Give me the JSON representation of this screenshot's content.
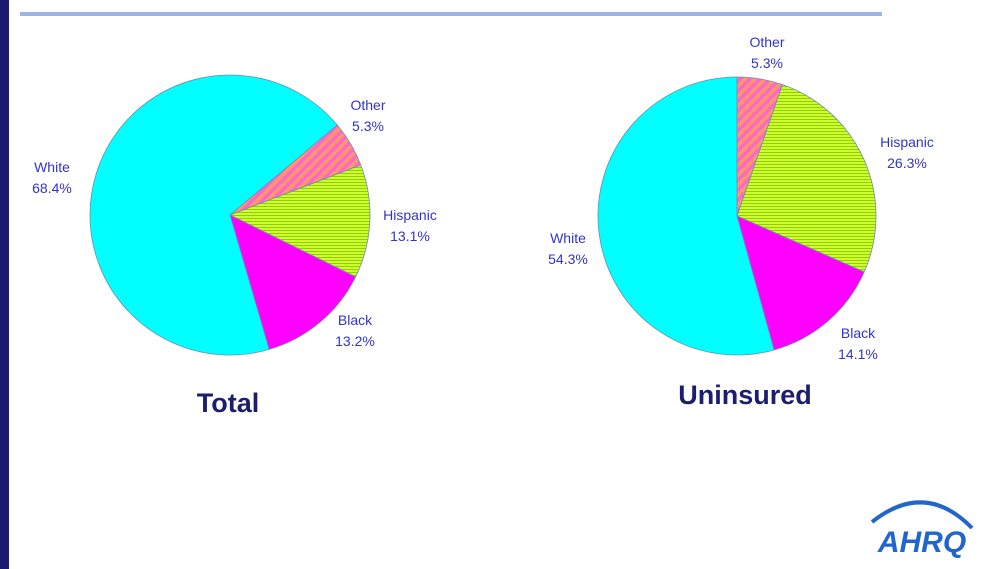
{
  "chart_data": [
    {
      "type": "pie",
      "title": "Total",
      "categories": [
        "Other",
        "Hispanic",
        "Black",
        "White"
      ],
      "values": [
        5.3,
        13.1,
        13.2,
        68.4
      ],
      "value_labels": [
        "5.3%",
        "13.1%",
        "13.2%",
        "68.4%"
      ],
      "colors": [
        "#ff9966",
        "#ccff33",
        "#ff00ff",
        "#00ffff"
      ],
      "hatch": [
        "diagonal",
        "horizontal",
        "none",
        "none"
      ]
    },
    {
      "type": "pie",
      "title": "Uninsured",
      "categories": [
        "Other",
        "Hispanic",
        "Black",
        "White"
      ],
      "values": [
        5.3,
        26.3,
        14.1,
        54.3
      ],
      "value_labels": [
        "5.3%",
        "26.3%",
        "14.1%",
        "54.3%"
      ],
      "colors": [
        "#ff9966",
        "#ccff33",
        "#ff00ff",
        "#00ffff"
      ],
      "hatch": [
        "diagonal",
        "horizontal",
        "none",
        "none"
      ]
    }
  ],
  "logo": "AHRQ"
}
